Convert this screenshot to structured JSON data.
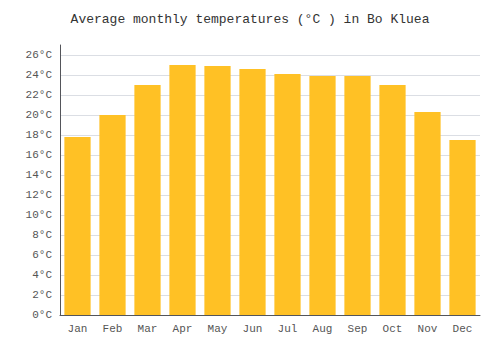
{
  "chart_data": {
    "type": "bar",
    "title": "Average monthly temperatures (°C ) in Bo Kluea",
    "categories": [
      "Jan",
      "Feb",
      "Mar",
      "Apr",
      "May",
      "Jun",
      "Jul",
      "Aug",
      "Sep",
      "Oct",
      "Nov",
      "Dec"
    ],
    "values": [
      17.8,
      20.0,
      23.0,
      25.0,
      24.9,
      24.6,
      24.1,
      23.9,
      23.9,
      23.0,
      20.3,
      17.5
    ],
    "color": "#FFC125",
    "ylim": [
      0,
      27
    ],
    "yticks": [
      {
        "value": 0,
        "label": "0°C"
      },
      {
        "value": 2,
        "label": "2°C"
      },
      {
        "value": 4,
        "label": "4°C"
      },
      {
        "value": 6,
        "label": "6°C"
      },
      {
        "value": 8,
        "label": "8°C"
      },
      {
        "value": 10,
        "label": "10°C"
      },
      {
        "value": 12,
        "label": "12°C"
      },
      {
        "value": 14,
        "label": "14°C"
      },
      {
        "value": 16,
        "label": "16°C"
      },
      {
        "value": 18,
        "label": "18°C"
      },
      {
        "value": 20,
        "label": "20°C"
      },
      {
        "value": 22,
        "label": "22°C"
      },
      {
        "value": 24,
        "label": "24°C"
      },
      {
        "value": 26,
        "label": "26°C"
      }
    ],
    "grid": true
  }
}
